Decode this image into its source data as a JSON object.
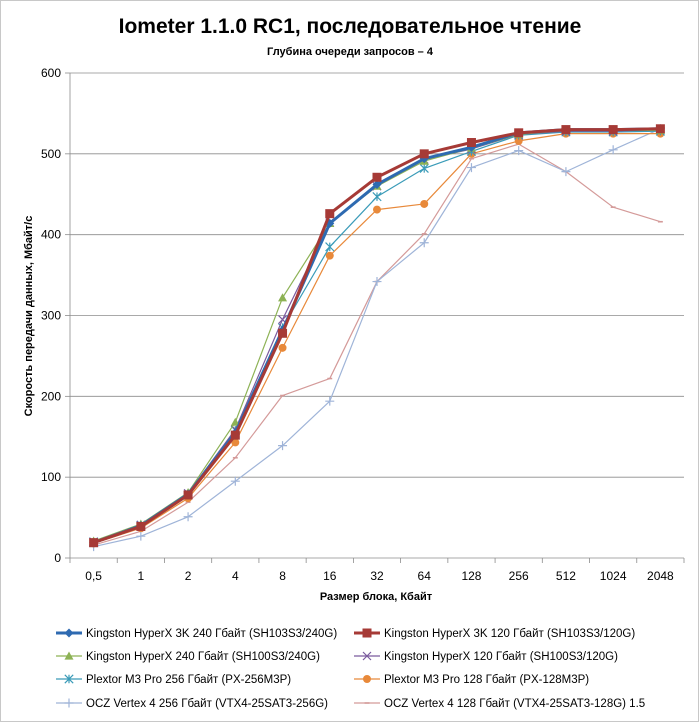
{
  "chart_data": {
    "type": "line",
    "title": "Iometer 1.1.0 RC1, последовательное чтение",
    "subtitle": "Глубина очереди запросов – 4",
    "xlabel": "Размер блока, Кбайт",
    "ylabel": "Скорость передачи данных, Мбайт/с",
    "ylim": [
      0,
      600
    ],
    "yticks": [
      0,
      100,
      200,
      300,
      400,
      500,
      600
    ],
    "grid": true,
    "legend_position": "bottom",
    "categories": [
      "0,5",
      "1",
      "2",
      "4",
      "8",
      "16",
      "32",
      "64",
      "128",
      "256",
      "512",
      "1024",
      "2048"
    ],
    "series": [
      {
        "name": "Kingston HyperX 3K 240 Гбайт (SH103S3/240G)",
        "color": "#2E6AB1",
        "marker": "diamond",
        "width": 3,
        "values": [
          19,
          40,
          79,
          155,
          282,
          414,
          462,
          494,
          508,
          526,
          530,
          530,
          531
        ]
      },
      {
        "name": "Kingston HyperX 3K 120 Гбайт (SH103S3/120G)",
        "color": "#A63A36",
        "marker": "square",
        "width": 3,
        "values": [
          19,
          39,
          78,
          152,
          278,
          426,
          471,
          500,
          514,
          526,
          530,
          530,
          531
        ]
      },
      {
        "name": "Kingston HyperX 240 Гбайт (SH100S3/240G)",
        "color": "#8DB255",
        "marker": "triangle",
        "width": 1.2,
        "values": [
          21,
          42,
          81,
          168,
          322,
          414,
          460,
          491,
          507,
          524,
          529,
          529,
          529
        ]
      },
      {
        "name": "Kingston HyperX 120 Гбайт (SH100S3/120G)",
        "color": "#7A5A9E",
        "marker": "x",
        "width": 1.2,
        "values": [
          20,
          41,
          80,
          159,
          295,
          415,
          460,
          493,
          506,
          524,
          528,
          528,
          530
        ]
      },
      {
        "name": "Plextor M3 Pro 256 Гбайт (PX-256M3P)",
        "color": "#3A9BB8",
        "marker": "star",
        "width": 1.2,
        "values": [
          20,
          40,
          78,
          158,
          285,
          385,
          447,
          482,
          503,
          523,
          527,
          527,
          528
        ]
      },
      {
        "name": "Plextor M3 Pro 128 Гбайт (PX-128M3P)",
        "color": "#E8893A",
        "marker": "circle",
        "width": 1.2,
        "values": [
          18,
          37,
          74,
          143,
          260,
          374,
          431,
          438,
          500,
          516,
          525,
          525,
          525
        ]
      },
      {
        "name": "OCZ Vertex 4 256 Гбайт (VTX4-25SAT3-256G)",
        "color": "#9FB4D8",
        "marker": "plus",
        "width": 1.2,
        "values": [
          14,
          27,
          51,
          95,
          139,
          194,
          342,
          390,
          483,
          504,
          478,
          505,
          531
        ]
      },
      {
        "name": "OCZ Vertex 4 128 Гбайт (VTX4-25SAT3-128G) 1.5",
        "color": "#D49A99",
        "marker": "dash",
        "width": 1.2,
        "values": [
          16,
          33,
          69,
          124,
          201,
          222,
          342,
          401,
          494,
          512,
          478,
          434,
          416
        ]
      }
    ]
  }
}
